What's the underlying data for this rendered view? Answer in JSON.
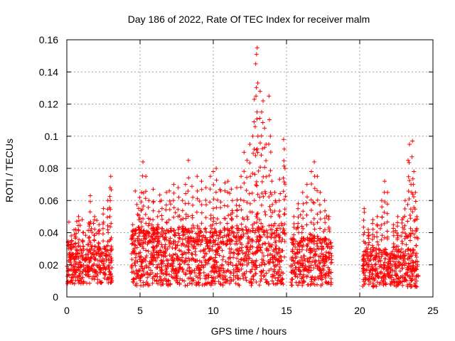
{
  "chart_data": {
    "type": "scatter",
    "title": "Day 186 of 2022, Rate Of TEC Index for receiver malm",
    "xlabel": "GPS time / hours",
    "ylabel": "ROTI / TECUs",
    "xlim": [
      0,
      25
    ],
    "ylim": [
      0,
      0.16
    ],
    "xticks": [
      0,
      5,
      10,
      15,
      20,
      25
    ],
    "xtick_labels": [
      "0",
      "5",
      "10",
      "15",
      "20",
      "25"
    ],
    "yticks": [
      0,
      0.02,
      0.04,
      0.06,
      0.08,
      0.1,
      0.12,
      0.14,
      0.16
    ],
    "ytick_labels": [
      "0",
      "0.02",
      "0.04",
      "0.06",
      "0.08",
      "0.1",
      "0.12",
      "0.14",
      "0.16"
    ],
    "grid": true,
    "marker": "+",
    "color": "#ff0000",
    "series": [
      {
        "name": "ROTI",
        "segments": [
          {
            "start": 0.0,
            "end": 3.1,
            "base": 0.02,
            "spread": 0.012,
            "peak": 0.075
          },
          {
            "start": 4.4,
            "end": 14.9,
            "base": 0.025,
            "spread": 0.018,
            "peak": 0.155
          },
          {
            "start": 15.3,
            "end": 18.1,
            "base": 0.022,
            "spread": 0.015,
            "peak": 0.084
          },
          {
            "start": 20.2,
            "end": 24.0,
            "base": 0.018,
            "spread": 0.012,
            "peak": 0.097
          }
        ],
        "points": [
          [
            0.1,
            0.034
          ],
          [
            0.3,
            0.038
          ],
          [
            0.6,
            0.042
          ],
          [
            0.8,
            0.05
          ],
          [
            1.1,
            0.04
          ],
          [
            1.5,
            0.046
          ],
          [
            1.6,
            0.063
          ],
          [
            1.9,
            0.05
          ],
          [
            2.2,
            0.045
          ],
          [
            2.5,
            0.055
          ],
          [
            2.8,
            0.06
          ],
          [
            2.95,
            0.068
          ],
          [
            3.0,
            0.075
          ],
          [
            4.5,
            0.045
          ],
          [
            4.9,
            0.055
          ],
          [
            5.1,
            0.065
          ],
          [
            5.2,
            0.084
          ],
          [
            5.4,
            0.075
          ],
          [
            5.6,
            0.06
          ],
          [
            5.9,
            0.067
          ],
          [
            6.2,
            0.05
          ],
          [
            6.5,
            0.055
          ],
          [
            6.8,
            0.065
          ],
          [
            7.0,
            0.066
          ],
          [
            7.3,
            0.07
          ],
          [
            7.6,
            0.068
          ],
          [
            7.9,
            0.06
          ],
          [
            8.1,
            0.07
          ],
          [
            8.3,
            0.085
          ],
          [
            8.6,
            0.062
          ],
          [
            8.9,
            0.075
          ],
          [
            9.2,
            0.072
          ],
          [
            9.5,
            0.068
          ],
          [
            9.8,
            0.075
          ],
          [
            10.0,
            0.078
          ],
          [
            10.2,
            0.08
          ],
          [
            10.5,
            0.066
          ],
          [
            10.8,
            0.071
          ],
          [
            11.0,
            0.072
          ],
          [
            11.3,
            0.06
          ],
          [
            11.6,
            0.068
          ],
          [
            11.9,
            0.075
          ],
          [
            12.1,
            0.09
          ],
          [
            12.3,
            0.085
          ],
          [
            12.5,
            0.095
          ],
          [
            12.7,
            0.1
          ],
          [
            12.8,
            0.123
          ],
          [
            12.9,
            0.145
          ],
          [
            12.95,
            0.151
          ],
          [
            13.0,
            0.155
          ],
          [
            13.05,
            0.1
          ],
          [
            13.2,
            0.128
          ],
          [
            13.3,
            0.115
          ],
          [
            13.4,
            0.122
          ],
          [
            13.5,
            0.105
          ],
          [
            13.6,
            0.095
          ],
          [
            13.8,
            0.125
          ],
          [
            13.9,
            0.1
          ],
          [
            14.0,
            0.072
          ],
          [
            14.2,
            0.065
          ],
          [
            14.5,
            0.06
          ],
          [
            14.8,
            0.098
          ],
          [
            14.85,
            0.092
          ],
          [
            14.9,
            0.08
          ],
          [
            15.5,
            0.05
          ],
          [
            15.8,
            0.058
          ],
          [
            16.1,
            0.065
          ],
          [
            16.4,
            0.07
          ],
          [
            16.7,
            0.078
          ],
          [
            16.9,
            0.084
          ],
          [
            17.1,
            0.075
          ],
          [
            17.3,
            0.065
          ],
          [
            17.6,
            0.06
          ],
          [
            17.9,
            0.05
          ],
          [
            20.3,
            0.055
          ],
          [
            20.6,
            0.04
          ],
          [
            20.9,
            0.048
          ],
          [
            21.2,
            0.05
          ],
          [
            21.5,
            0.06
          ],
          [
            21.7,
            0.072
          ],
          [
            21.9,
            0.065
          ],
          [
            22.3,
            0.045
          ],
          [
            22.6,
            0.05
          ],
          [
            22.9,
            0.048
          ],
          [
            23.1,
            0.06
          ],
          [
            23.3,
            0.085
          ],
          [
            23.4,
            0.095
          ],
          [
            23.5,
            0.07
          ],
          [
            23.6,
            0.097
          ],
          [
            23.7,
            0.078
          ],
          [
            23.8,
            0.065
          ],
          [
            23.9,
            0.05
          ]
        ]
      }
    ]
  }
}
